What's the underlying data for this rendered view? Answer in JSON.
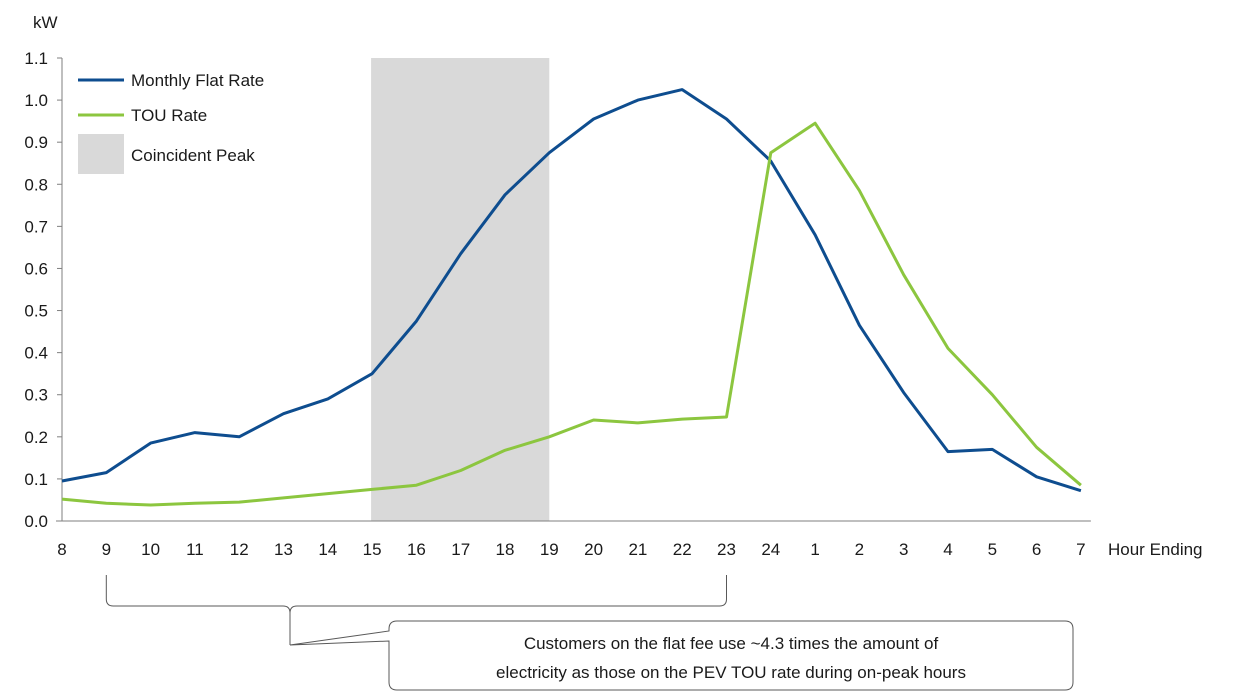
{
  "chart_data": {
    "type": "line",
    "ylabel": "kW",
    "xlabel": "Hour Ending",
    "ylim": [
      0,
      1.1
    ],
    "yticks": [
      "0.0",
      "0.1",
      "0.2",
      "0.3",
      "0.4",
      "0.5",
      "0.6",
      "0.7",
      "0.8",
      "0.9",
      "1.0",
      "1.1"
    ],
    "categories": [
      "8",
      "9",
      "10",
      "11",
      "12",
      "13",
      "14",
      "15",
      "16",
      "17",
      "18",
      "19",
      "20",
      "21",
      "22",
      "23",
      "24",
      "1",
      "2",
      "3",
      "4",
      "5",
      "6",
      "7"
    ],
    "series": [
      {
        "name": "Monthly Flat Rate",
        "color": "#0e4d8f",
        "values": [
          0.095,
          0.115,
          0.185,
          0.21,
          0.2,
          0.255,
          0.29,
          0.35,
          0.475,
          0.635,
          0.775,
          0.875,
          0.955,
          1.0,
          1.025,
          0.955,
          0.855,
          0.68,
          0.465,
          0.305,
          0.165,
          0.17,
          0.105,
          0.072
        ]
      },
      {
        "name": "TOU Rate",
        "color": "#8cc63f",
        "values": [
          0.052,
          0.042,
          0.038,
          0.042,
          0.045,
          0.055,
          0.065,
          0.075,
          0.085,
          0.12,
          0.168,
          0.2,
          0.24,
          0.233,
          0.242,
          0.247,
          0.875,
          0.945,
          0.785,
          0.585,
          0.41,
          0.3,
          0.175,
          0.085
        ]
      }
    ],
    "shaded_region": {
      "name": "Coincident Peak",
      "color": "#d9d9d9",
      "from": "15",
      "to": "19"
    },
    "legend_position": "top-left",
    "grid": false,
    "annotation": {
      "bracket_from": "9",
      "bracket_to": "23",
      "lines": [
        "Customers on the flat fee use ~4.3 times the amount of",
        "electricity as those on the PEV TOU rate during on-peak hours"
      ]
    }
  }
}
